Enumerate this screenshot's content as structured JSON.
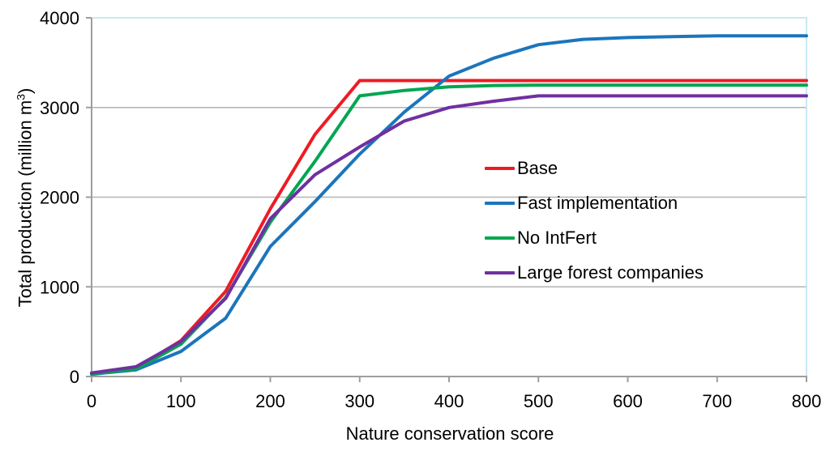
{
  "chart_data": {
    "type": "line",
    "title": "",
    "xlabel": "Nature conservation score",
    "ylabel": "Total production (million m³)",
    "ylabel_parts": {
      "prefix": "Total production (million m",
      "sup": "3",
      "suffix": ")"
    },
    "xlim": [
      0,
      800
    ],
    "ylim": [
      0,
      4000
    ],
    "x_ticks": [
      0,
      100,
      200,
      300,
      400,
      500,
      600,
      700,
      800
    ],
    "y_ticks": [
      0,
      1000,
      2000,
      3000,
      4000
    ],
    "grid": "horizontal",
    "legend_position": "center-right",
    "x": [
      0,
      50,
      100,
      150,
      200,
      250,
      300,
      350,
      400,
      450,
      500,
      550,
      600,
      650,
      700,
      750,
      800
    ],
    "series": [
      {
        "name": "Base",
        "color": "#ED1C24",
        "values": [
          35,
          95,
          400,
          950,
          1870,
          2700,
          3300,
          3300,
          3300,
          3300,
          3300,
          3300,
          3300,
          3300,
          3300,
          3300,
          3300
        ]
      },
      {
        "name": "Fast implementation",
        "color": "#1B75BC",
        "values": [
          25,
          75,
          280,
          650,
          1450,
          1950,
          2480,
          2950,
          3350,
          3550,
          3700,
          3760,
          3780,
          3790,
          3800,
          3800,
          3800
        ]
      },
      {
        "name": "No IntFert",
        "color": "#00A651",
        "values": [
          30,
          85,
          360,
          880,
          1720,
          2400,
          3130,
          3190,
          3230,
          3245,
          3250,
          3250,
          3250,
          3250,
          3250,
          3250,
          3250
        ]
      },
      {
        "name": "Large forest companies",
        "color": "#7030A0",
        "values": [
          40,
          110,
          390,
          870,
          1760,
          2250,
          2560,
          2850,
          3000,
          3070,
          3130,
          3130,
          3130,
          3130,
          3130,
          3130,
          3130
        ]
      }
    ],
    "colors": {
      "axis": "#9E9E9E",
      "gridline": "#B3B3B3",
      "plot_border_top_right": "#C8E8F4",
      "tick_label": "#000000"
    }
  }
}
